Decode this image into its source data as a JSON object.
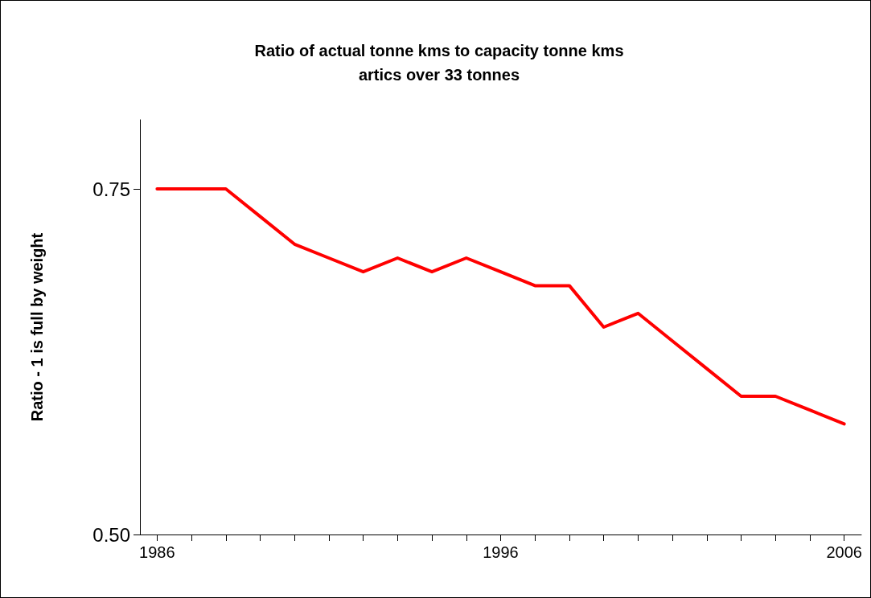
{
  "chart_data": {
    "type": "line",
    "title": "Ratio of actual tonne kms to capacity tonne kms\nartics over 33 tonnes",
    "ylabel": "Ratio - 1 is full by weight",
    "x": [
      1986,
      1987,
      1988,
      1989,
      1990,
      1991,
      1992,
      1993,
      1994,
      1995,
      1996,
      1997,
      1998,
      1999,
      2000,
      2001,
      2002,
      2003,
      2004,
      2005,
      2006
    ],
    "series": [
      {
        "color": "#ff0000",
        "values": [
          0.75,
          0.75,
          0.75,
          0.73,
          0.71,
          0.7,
          0.69,
          0.7,
          0.69,
          0.7,
          0.69,
          0.68,
          0.68,
          0.65,
          0.66,
          0.64,
          0.62,
          0.6,
          0.6,
          0.59,
          0.58
        ]
      }
    ],
    "xlim": [
      1985.5,
      2006.5
    ],
    "xticks": [
      1986,
      {
        "value": 1987,
        "label": null
      },
      {
        "value": 1988,
        "label": null
      },
      {
        "value": 1989,
        "label": null
      },
      {
        "value": 1990,
        "label": null
      },
      {
        "value": 1991,
        "label": null
      },
      {
        "value": 1992,
        "label": null
      },
      {
        "value": 1993,
        "label": null
      },
      {
        "value": 1994,
        "label": null
      },
      {
        "value": 1995,
        "label": null
      },
      1996,
      {
        "value": 1997,
        "label": null
      },
      {
        "value": 1998,
        "label": null
      },
      {
        "value": 1999,
        "label": null
      },
      {
        "value": 2000,
        "label": null
      },
      {
        "value": 2001,
        "label": null
      },
      {
        "value": 2002,
        "label": null
      },
      {
        "value": 2003,
        "label": null
      },
      {
        "value": 2004,
        "label": null
      },
      {
        "value": 2005,
        "label": null
      },
      2006
    ],
    "ylim": [
      0.5,
      0.8
    ],
    "yticks": [
      {
        "value": 0.5,
        "label": "0.50"
      },
      {
        "value": 0.75,
        "label": "0.75"
      }
    ],
    "grid": false,
    "marker": "none",
    "line_style": "solid"
  }
}
